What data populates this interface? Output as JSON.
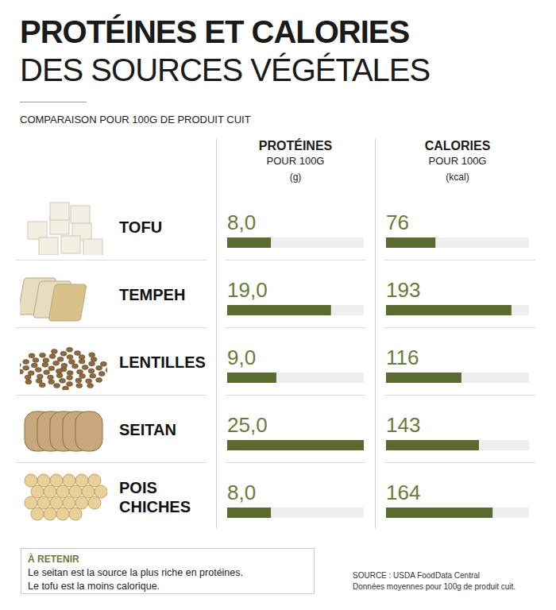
{
  "title": "PROTÉINES ET CALORIES",
  "subtitle": "DES SOURCES VÉGÉTALES",
  "caption": "COMPARAISON POUR 100G DE PRODUIT CUIT",
  "chart_data": [
    {
      "type": "bar",
      "orientation": "horizontal",
      "title": "PROTÉINES",
      "subtitle": "POUR 100G",
      "xlabel": "(g)",
      "categories": [
        "TOFU",
        "TEMPEH",
        "LENTILLES",
        "SEITAN",
        "POIS CHICHES"
      ],
      "values": [
        8.0,
        19.0,
        9.0,
        25.0,
        8.0
      ],
      "value_labels": [
        "8,0",
        "19,0",
        "9,0",
        "25,0",
        "8,0"
      ],
      "color": "#5b6b2f",
      "xlim": [
        0,
        25
      ],
      "tick_labels": false,
      "data_labels": true,
      "grid": false
    },
    {
      "type": "bar",
      "orientation": "horizontal",
      "title": "CALORIES",
      "subtitle": "POUR 100G",
      "xlabel": "(kcal)",
      "categories": [
        "TOFU",
        "TEMPEH",
        "LENTILLES",
        "SEITAN",
        "POIS CHICHES"
      ],
      "values": [
        76,
        193,
        116,
        143,
        164
      ],
      "color": "#5b6b2f",
      "xlim": [
        0,
        220
      ],
      "tick_labels": false,
      "data_labels": true,
      "grid": false
    }
  ],
  "takeaway": {
    "title": "À RETENIR",
    "lines": [
      "Le seitan est la source la plus riche en protéines.",
      "Le tofu est la moins calorique."
    ]
  },
  "source": [
    "SOURCE : USDA FoodData Central",
    "Données moyennes pour 100g de produit cuit."
  ]
}
